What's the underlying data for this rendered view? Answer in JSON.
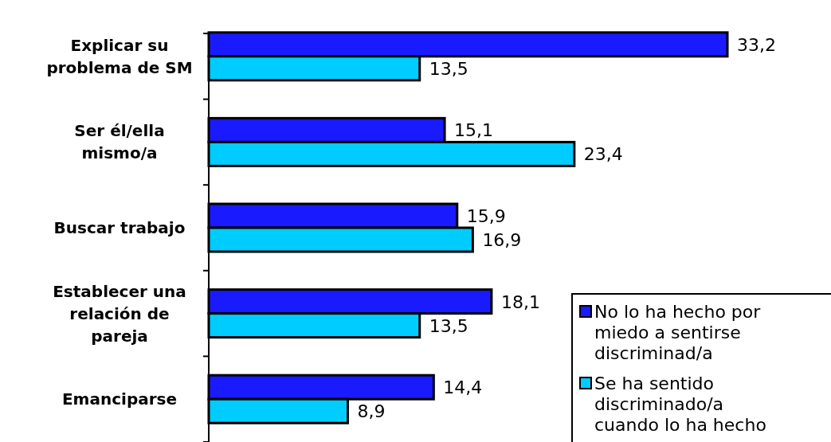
{
  "chart_data": {
    "type": "bar",
    "orientation": "horizontal",
    "legend": "bottom right",
    "categories": [
      "Explicar su problema de SM",
      "Ser él/ella mismo/a",
      "Buscar trabajo",
      "Establecer una relación de pareja",
      "Emanciparse"
    ],
    "series": [
      {
        "name": "No lo ha hecho por miedo a sentirse discriminad/a",
        "color": "#1a1aff",
        "values": [
          33.2,
          15.1,
          15.9,
          18.1,
          14.4
        ],
        "value_labels": [
          "33,2",
          "15,1",
          "15,9",
          "18,1",
          "14,4"
        ]
      },
      {
        "name": "Se ha sentido discriminado/a cuando lo ha hecho",
        "color": "#00ccff",
        "values": [
          13.5,
          23.4,
          16.9,
          13.5,
          8.9
        ],
        "value_labels": [
          "13,5",
          "23,4",
          "16,9",
          "13,5",
          "8,9"
        ]
      }
    ]
  }
}
